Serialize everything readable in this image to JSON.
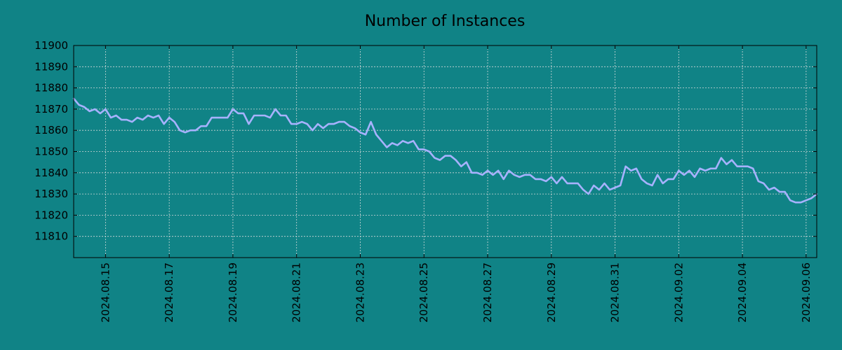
{
  "colors": {
    "background": "#108386",
    "line": "#a7b2ff",
    "grid": "#cfd8d8",
    "axis": "#000000"
  },
  "chart_data": {
    "type": "line",
    "title": "Number of Instances",
    "xlabel": "",
    "ylabel": "",
    "grid": true,
    "legend": "none",
    "xlim": [
      "2024-08-14",
      "2024-09-06T08:00"
    ],
    "ylim": [
      11800,
      11900
    ],
    "yticks": [
      11810,
      11820,
      11830,
      11840,
      11850,
      11860,
      11870,
      11880,
      11890,
      11900
    ],
    "xticks": [
      "2024.08.15",
      "2024.08.17",
      "2024.08.19",
      "2024.08.21",
      "2024.08.23",
      "2024.08.25",
      "2024.08.27",
      "2024.08.29",
      "2024.08.31",
      "2024.09.02",
      "2024.09.04",
      "2024.09.06"
    ],
    "series": [
      {
        "x": [
          "2024-08-14T00:00",
          "2024-08-14T04:00",
          "2024-08-14T08:00",
          "2024-08-14T12:00",
          "2024-08-14T16:00",
          "2024-08-14T20:00",
          "2024-08-15T00:00",
          "2024-08-15T04:00",
          "2024-08-15T08:00",
          "2024-08-15T12:00",
          "2024-08-15T16:00",
          "2024-08-15T20:00",
          "2024-08-16T00:00",
          "2024-08-16T04:00",
          "2024-08-16T08:00",
          "2024-08-16T12:00",
          "2024-08-16T16:00",
          "2024-08-16T20:00",
          "2024-08-17T00:00",
          "2024-08-17T04:00",
          "2024-08-17T08:00",
          "2024-08-17T12:00",
          "2024-08-17T16:00",
          "2024-08-17T20:00",
          "2024-08-18T00:00",
          "2024-08-18T04:00",
          "2024-08-18T08:00",
          "2024-08-18T12:00",
          "2024-08-18T16:00",
          "2024-08-18T20:00",
          "2024-08-19T00:00",
          "2024-08-19T04:00",
          "2024-08-19T08:00",
          "2024-08-19T12:00",
          "2024-08-19T16:00",
          "2024-08-19T20:00",
          "2024-08-20T00:00",
          "2024-08-20T04:00",
          "2024-08-20T08:00",
          "2024-08-20T12:00",
          "2024-08-20T16:00",
          "2024-08-20T20:00",
          "2024-08-21T00:00",
          "2024-08-21T04:00",
          "2024-08-21T08:00",
          "2024-08-21T12:00",
          "2024-08-21T16:00",
          "2024-08-21T20:00",
          "2024-08-22T00:00",
          "2024-08-22T04:00",
          "2024-08-22T08:00",
          "2024-08-22T12:00",
          "2024-08-22T16:00",
          "2024-08-22T20:00",
          "2024-08-23T00:00",
          "2024-08-23T04:00",
          "2024-08-23T08:00",
          "2024-08-23T12:00",
          "2024-08-23T16:00",
          "2024-08-23T20:00",
          "2024-08-24T00:00",
          "2024-08-24T04:00",
          "2024-08-24T08:00",
          "2024-08-24T12:00",
          "2024-08-24T16:00",
          "2024-08-24T20:00",
          "2024-08-25T00:00",
          "2024-08-25T04:00",
          "2024-08-25T08:00",
          "2024-08-25T12:00",
          "2024-08-25T16:00",
          "2024-08-25T20:00",
          "2024-08-26T00:00",
          "2024-08-26T04:00",
          "2024-08-26T08:00",
          "2024-08-26T12:00",
          "2024-08-26T16:00",
          "2024-08-26T20:00",
          "2024-08-27T00:00",
          "2024-08-27T04:00",
          "2024-08-27T08:00",
          "2024-08-27T12:00",
          "2024-08-27T16:00",
          "2024-08-27T20:00",
          "2024-08-28T00:00",
          "2024-08-28T04:00",
          "2024-08-28T08:00",
          "2024-08-28T12:00",
          "2024-08-28T16:00",
          "2024-08-28T20:00",
          "2024-08-29T00:00",
          "2024-08-29T04:00",
          "2024-08-29T08:00",
          "2024-08-29T12:00",
          "2024-08-29T16:00",
          "2024-08-29T20:00",
          "2024-08-30T00:00",
          "2024-08-30T04:00",
          "2024-08-30T08:00",
          "2024-08-30T12:00",
          "2024-08-30T16:00",
          "2024-08-30T20:00",
          "2024-08-31T00:00",
          "2024-08-31T04:00",
          "2024-08-31T08:00",
          "2024-08-31T12:00",
          "2024-08-31T16:00",
          "2024-08-31T20:00",
          "2024-09-01T00:00",
          "2024-09-01T04:00",
          "2024-09-01T08:00",
          "2024-09-01T12:00",
          "2024-09-01T16:00",
          "2024-09-01T20:00",
          "2024-09-02T00:00",
          "2024-09-02T04:00",
          "2024-09-02T08:00",
          "2024-09-02T12:00",
          "2024-09-02T16:00",
          "2024-09-02T20:00",
          "2024-09-03T00:00",
          "2024-09-03T04:00",
          "2024-09-03T08:00",
          "2024-09-03T12:00",
          "2024-09-03T16:00",
          "2024-09-03T20:00",
          "2024-09-04T00:00",
          "2024-09-04T04:00",
          "2024-09-04T08:00",
          "2024-09-04T12:00",
          "2024-09-04T16:00",
          "2024-09-04T20:00",
          "2024-09-05T00:00",
          "2024-09-05T04:00",
          "2024-09-05T08:00",
          "2024-09-05T12:00",
          "2024-09-05T16:00",
          "2024-09-05T20:00",
          "2024-09-06T00:00",
          "2024-09-06T04:00",
          "2024-09-06T08:00"
        ],
        "y": [
          11875,
          11872,
          11871,
          11869,
          11870,
          11868,
          11870,
          11866,
          11867,
          11865,
          11865,
          11864,
          11866,
          11865,
          11867,
          11866,
          11867,
          11863,
          11866,
          11864,
          11860,
          11859,
          11860,
          11860,
          11862,
          11862,
          11866,
          11866,
          11866,
          11866,
          11870,
          11868,
          11868,
          11863,
          11867,
          11867,
          11867,
          11866,
          11870,
          11867,
          11867,
          11863,
          11863,
          11864,
          11863,
          11860,
          11863,
          11861,
          11863,
          11863,
          11864,
          11864,
          11862,
          11861,
          11859,
          11858,
          11864,
          11858,
          11855,
          11852,
          11854,
          11853,
          11855,
          11854,
          11855,
          11851,
          11851,
          11850,
          11847,
          11846,
          11848,
          11848,
          11846,
          11843,
          11845,
          11840,
          11840,
          11839,
          11841,
          11839,
          11841,
          11837,
          11841,
          11839,
          11838,
          11839,
          11839,
          11837,
          11837,
          11836,
          11838,
          11835,
          11838,
          11835,
          11835,
          11835,
          11832,
          11830,
          11834,
          11832,
          11835,
          11832,
          11833,
          11834,
          11843,
          11841,
          11842,
          11837,
          11835,
          11834,
          11839,
          11835,
          11837,
          11837,
          11841,
          11839,
          11841,
          11838,
          11842,
          11841,
          11842,
          11842,
          11847,
          11844,
          11846,
          11843,
          11843,
          11843,
          11842,
          11836,
          11835,
          11832,
          11833,
          11831,
          11831,
          11827,
          11826,
          11826,
          11827,
          11828,
          11830
        ]
      }
    ]
  }
}
